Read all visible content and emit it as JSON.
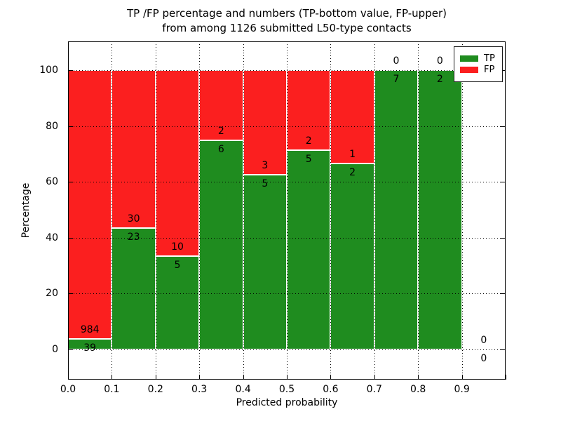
{
  "chart_data": {
    "type": "bar",
    "stacking": "percent",
    "title": "TP /FP percentage and numbers (TP-bottom value, FP-upper)",
    "subtitle": "from among 1126 submitted L50-type contacts",
    "xlabel": "Predicted probability",
    "ylabel": "Percentage",
    "total_contacts": 1126,
    "bin_width": 0.1,
    "x_bin_starts": [
      0.0,
      0.1,
      0.2,
      0.3,
      0.4,
      0.5,
      0.6,
      0.7,
      0.8,
      0.9
    ],
    "x_tick_labels": [
      "0.0",
      "0.1",
      "0.2",
      "0.3",
      "0.4",
      "0.5",
      "0.6",
      "0.7",
      "0.8",
      "0.9"
    ],
    "y_tick_values": [
      0,
      20,
      40,
      60,
      80,
      100
    ],
    "ylim": [
      0,
      100
    ],
    "xlim": [
      0.0,
      1.0
    ],
    "grid": true,
    "grid_style": "dotted",
    "legend_position": "upper right",
    "series": [
      {
        "name": "TP",
        "color": "#1f8c1f",
        "values": [
          39,
          23,
          5,
          6,
          5,
          5,
          2,
          7,
          2,
          0
        ]
      },
      {
        "name": "FP",
        "color": "#fb1f1f",
        "values": [
          984,
          30,
          10,
          2,
          3,
          2,
          1,
          0,
          0,
          0
        ]
      }
    ],
    "bar_edge_color": "#ffffff",
    "annotation_rule": "TP count shown below segment boundary, FP count shown above"
  }
}
